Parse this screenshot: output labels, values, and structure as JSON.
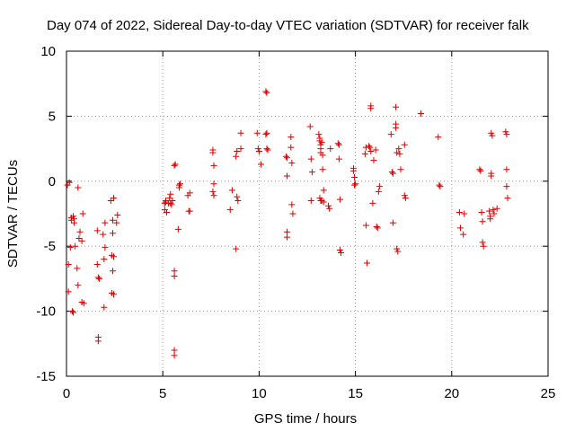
{
  "chart_data": {
    "type": "scatter",
    "title": "Day 074 of 2022, Sidereal Day-to-day VTEC variation (SDTVAR) for receiver falk",
    "xlabel": "GPS time / hours",
    "ylabel": "SDTVAR / TECUs",
    "xlim": [
      0,
      25
    ],
    "ylim": [
      -15,
      10
    ],
    "xticks": [
      "0",
      "5",
      "10",
      "15",
      "20",
      "25"
    ],
    "yticks": [
      "-15",
      "-10",
      "-5",
      "0",
      "5",
      "10"
    ],
    "grid": true,
    "marker": "+",
    "color": "#dd0000",
    "points": [
      [
        0.05,
        -0.3
      ],
      [
        0.1,
        -6.4
      ],
      [
        0.1,
        -8.5
      ],
      [
        0.15,
        -0.1
      ],
      [
        0.2,
        -5.1
      ],
      [
        0.25,
        -2.8
      ],
      [
        0.25,
        -3.0
      ],
      [
        0.3,
        -10.0
      ],
      [
        0.35,
        -10.1
      ],
      [
        0.35,
        -2.7
      ],
      [
        0.4,
        -2.9
      ],
      [
        0.4,
        -3.2
      ],
      [
        0.45,
        -5.0
      ],
      [
        0.55,
        -6.7
      ],
      [
        0.6,
        -8.0
      ],
      [
        0.6,
        -0.5
      ],
      [
        0.65,
        -4.4
      ],
      [
        0.7,
        -3.9
      ],
      [
        0.8,
        -9.3
      ],
      [
        0.8,
        -4.6
      ],
      [
        0.85,
        -2.5
      ],
      [
        0.9,
        -9.4
      ],
      [
        1.6,
        -3.8
      ],
      [
        1.6,
        -6.4
      ],
      [
        1.65,
        -12.0
      ],
      [
        1.65,
        -12.3
      ],
      [
        1.65,
        -7.4
      ],
      [
        1.7,
        -7.5
      ],
      [
        1.9,
        -4.1
      ],
      [
        1.95,
        -9.7
      ],
      [
        1.95,
        -6.0
      ],
      [
        2.0,
        -3.2
      ],
      [
        2.0,
        -5.1
      ],
      [
        2.3,
        -1.5
      ],
      [
        2.35,
        -5.7
      ],
      [
        2.35,
        -8.6
      ],
      [
        2.4,
        -6.9
      ],
      [
        2.4,
        -3.0
      ],
      [
        2.4,
        -4.0
      ],
      [
        2.45,
        -1.3
      ],
      [
        2.45,
        -8.7
      ],
      [
        2.45,
        -5.8
      ],
      [
        2.6,
        -3.2
      ],
      [
        2.65,
        -2.6
      ],
      [
        5.1,
        -1.7
      ],
      [
        5.1,
        -2.2
      ],
      [
        5.15,
        -1.5
      ],
      [
        5.15,
        -1.6
      ],
      [
        5.2,
        -2.4
      ],
      [
        5.3,
        -1.7
      ],
      [
        5.35,
        -1.3
      ],
      [
        5.4,
        -1.0
      ],
      [
        5.4,
        -1.7
      ],
      [
        5.45,
        -1.8
      ],
      [
        5.5,
        -1.5
      ],
      [
        5.6,
        -13.0
      ],
      [
        5.6,
        -13.4
      ],
      [
        5.6,
        -6.9
      ],
      [
        5.6,
        -7.3
      ],
      [
        5.6,
        1.2
      ],
      [
        5.65,
        1.3
      ],
      [
        5.8,
        -3.7
      ],
      [
        5.85,
        -0.3
      ],
      [
        5.85,
        -0.5
      ],
      [
        5.9,
        -0.2
      ],
      [
        6.3,
        -1.1
      ],
      [
        6.35,
        -2.3
      ],
      [
        6.4,
        -2.3
      ],
      [
        6.4,
        -0.9
      ],
      [
        7.6,
        2.2
      ],
      [
        7.6,
        2.4
      ],
      [
        7.65,
        1.2
      ],
      [
        7.65,
        -0.2
      ],
      [
        7.6,
        -0.8
      ],
      [
        7.65,
        -1.1
      ],
      [
        8.5,
        -2.2
      ],
      [
        8.6,
        -0.7
      ],
      [
        8.8,
        -5.2
      ],
      [
        8.8,
        1.9
      ],
      [
        8.85,
        2.3
      ],
      [
        8.85,
        -1.2
      ],
      [
        8.9,
        -1.5
      ],
      [
        9.05,
        3.7
      ],
      [
        9.05,
        2.5
      ],
      [
        9.9,
        3.7
      ],
      [
        9.95,
        2.5
      ],
      [
        10.0,
        2.3
      ],
      [
        10.1,
        1.3
      ],
      [
        10.35,
        6.9
      ],
      [
        10.4,
        6.8
      ],
      [
        10.35,
        3.6
      ],
      [
        10.4,
        3.7
      ],
      [
        10.4,
        2.5
      ],
      [
        10.45,
        2.4
      ],
      [
        11.4,
        1.9
      ],
      [
        11.45,
        1.8
      ],
      [
        11.45,
        0.4
      ],
      [
        11.45,
        -3.9
      ],
      [
        11.45,
        -4.3
      ],
      [
        11.65,
        3.4
      ],
      [
        11.65,
        2.6
      ],
      [
        11.7,
        1.4
      ],
      [
        11.7,
        -1.8
      ],
      [
        11.75,
        -2.5
      ],
      [
        12.65,
        4.2
      ],
      [
        12.7,
        1.7
      ],
      [
        12.75,
        0.7
      ],
      [
        12.7,
        -1.5
      ],
      [
        13.1,
        3.6
      ],
      [
        13.15,
        3.3
      ],
      [
        13.15,
        3.1
      ],
      [
        13.2,
        2.8
      ],
      [
        13.2,
        2.5
      ],
      [
        13.2,
        2.2
      ],
      [
        13.25,
        3.0
      ],
      [
        13.15,
        -1.3
      ],
      [
        13.2,
        -1.5
      ],
      [
        13.25,
        -1.5
      ],
      [
        13.3,
        2.0
      ],
      [
        13.35,
        -1.6
      ],
      [
        13.35,
        -0.7
      ],
      [
        13.3,
        0.9
      ],
      [
        13.6,
        -1.9
      ],
      [
        13.65,
        -2.1
      ],
      [
        13.7,
        2.5
      ],
      [
        14.1,
        2.9
      ],
      [
        14.15,
        2.8
      ],
      [
        14.15,
        1.7
      ],
      [
        14.2,
        -1.4
      ],
      [
        14.2,
        -5.3
      ],
      [
        14.25,
        -5.5
      ],
      [
        14.9,
        1.0
      ],
      [
        14.9,
        0.8
      ],
      [
        14.95,
        0.3
      ],
      [
        14.95,
        -0.3
      ],
      [
        15.0,
        -0.2
      ],
      [
        15.5,
        2.1
      ],
      [
        15.55,
        2.6
      ],
      [
        15.55,
        -3.4
      ],
      [
        15.6,
        -6.3
      ],
      [
        15.7,
        2.7
      ],
      [
        15.75,
        2.6
      ],
      [
        15.8,
        2.3
      ],
      [
        15.8,
        5.8
      ],
      [
        15.8,
        5.6
      ],
      [
        15.9,
        -1.7
      ],
      [
        15.95,
        1.6
      ],
      [
        16.05,
        2.4
      ],
      [
        16.1,
        -3.5
      ],
      [
        16.15,
        -3.6
      ],
      [
        16.2,
        -0.8
      ],
      [
        16.25,
        -0.4
      ],
      [
        16.85,
        3.6
      ],
      [
        16.9,
        0.7
      ],
      [
        16.95,
        -3.2
      ],
      [
        16.95,
        0.6
      ],
      [
        17.1,
        5.7
      ],
      [
        17.1,
        4.4
      ],
      [
        17.1,
        4.1
      ],
      [
        17.15,
        2.2
      ],
      [
        17.15,
        -5.2
      ],
      [
        17.2,
        -5.4
      ],
      [
        17.25,
        2.5
      ],
      [
        17.3,
        2.1
      ],
      [
        17.35,
        0.9
      ],
      [
        17.55,
        2.8
      ],
      [
        17.55,
        -1.1
      ],
      [
        17.6,
        -1.3
      ],
      [
        18.4,
        5.2
      ],
      [
        19.3,
        3.4
      ],
      [
        19.35,
        -0.3
      ],
      [
        19.4,
        -0.4
      ],
      [
        20.4,
        -2.4
      ],
      [
        20.45,
        -3.6
      ],
      [
        20.6,
        -4.1
      ],
      [
        20.65,
        -2.5
      ],
      [
        21.45,
        0.9
      ],
      [
        21.5,
        0.8
      ],
      [
        21.55,
        -2.4
      ],
      [
        21.6,
        -3.1
      ],
      [
        21.6,
        -4.7
      ],
      [
        21.65,
        -5.0
      ],
      [
        21.95,
        -2.3
      ],
      [
        22.0,
        -2.7
      ],
      [
        22.0,
        -2.9
      ],
      [
        22.05,
        0.4
      ],
      [
        22.05,
        0.6
      ],
      [
        22.05,
        3.7
      ],
      [
        22.1,
        3.5
      ],
      [
        22.15,
        -2.2
      ],
      [
        22.2,
        -2.5
      ],
      [
        22.35,
        -2.1
      ],
      [
        22.8,
        3.8
      ],
      [
        22.85,
        3.6
      ],
      [
        22.85,
        0.9
      ],
      [
        22.85,
        -0.4
      ],
      [
        22.9,
        -1.3
      ]
    ]
  }
}
